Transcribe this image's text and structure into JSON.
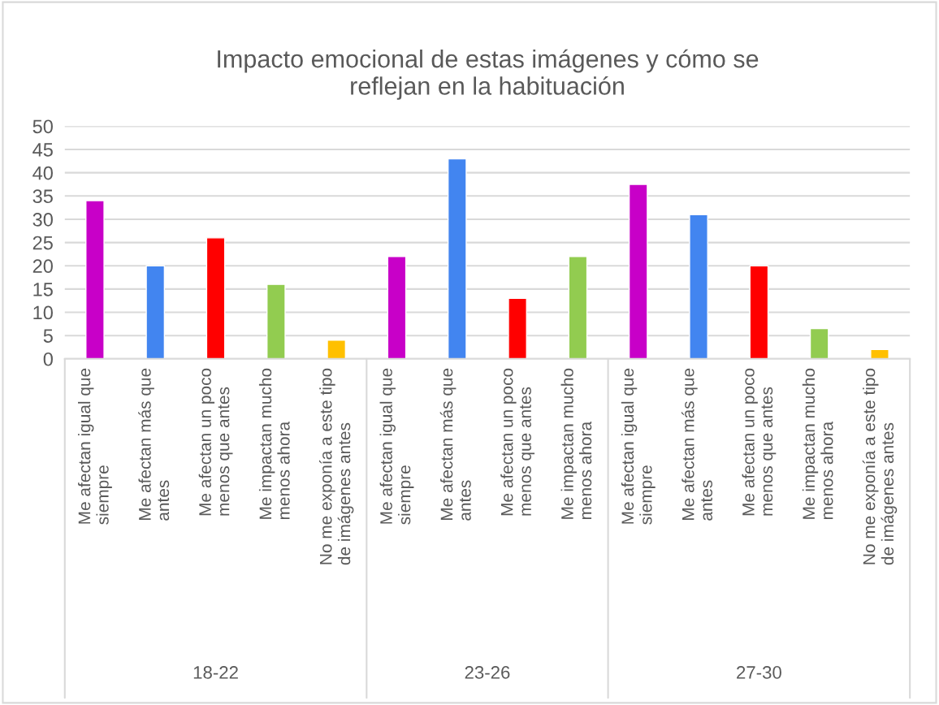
{
  "chart_data": {
    "type": "bar",
    "title": "Impacto emocional de estas imágenes y cómo se\nreflejan en la habituación",
    "categories": [
      "Me afectan igual que\nsiempre",
      "Me afectan más que\nantes",
      "Me afectan un poco\nmenos que antes",
      "Me impactan mucho\nmenos ahora",
      "No me exponía a este tipo\nde imágenes antes",
      "Me afectan igual que\nsiempre",
      "Me afectan más que\nantes",
      "Me afectan un poco\nmenos que antes",
      "Me impactan mucho\nmenos ahora",
      "Me afectan igual que\nsiempre",
      "Me afectan más que\nantes",
      "Me afectan un poco\nmenos que antes",
      "Me impactan mucho\nmenos ahora",
      "No me exponía a este tipo\nde imágenes antes"
    ],
    "values": [
      34,
      20,
      26,
      16,
      4,
      22,
      43,
      13,
      22,
      37.5,
      31,
      20,
      6.5,
      2
    ],
    "colors": [
      "#c800c8",
      "#4285f0",
      "#ff0000",
      "#92cc50",
      "#ffc000",
      "#c800c8",
      "#4285f0",
      "#ff0000",
      "#92cc50",
      "#c800c8",
      "#4285f0",
      "#ff0000",
      "#92cc50",
      "#ffc000"
    ],
    "annotations": [
      "18-22",
      "23-26",
      "27-30"
    ],
    "ylim": [
      0,
      50
    ],
    "yticks": [
      0,
      5,
      10,
      15,
      20,
      25,
      30,
      35,
      40,
      45,
      50
    ],
    "grid": "y"
  }
}
